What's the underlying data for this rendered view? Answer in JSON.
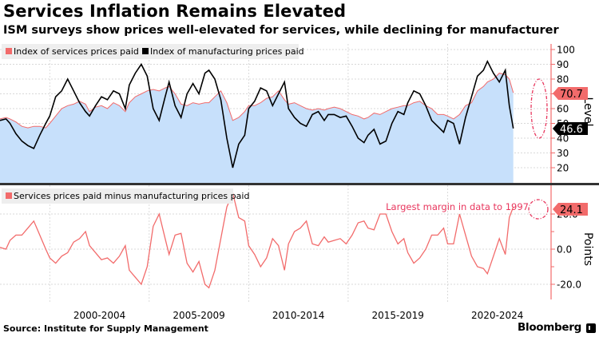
{
  "header": {
    "title": "Services Inflation Remains Elevated",
    "subtitle": "ISM surveys show prices well-elevated for services, while declining for manufacturer"
  },
  "footer": {
    "source": "Source: Institute for Supply Management",
    "brand": "Bloomberg"
  },
  "colors": {
    "services": "#f26b6b",
    "manufacturing": "#000000",
    "services_fill": "#c7e0fb",
    "annotation": "#e8365d",
    "axis": "#f26b6b"
  },
  "chart_data": [
    {
      "type": "area",
      "panel": "top",
      "title": "",
      "ylabel": "Level",
      "ylim": [
        10,
        102
      ],
      "yticks": [
        20,
        30,
        40,
        50,
        60,
        70,
        80,
        90,
        100
      ],
      "xlim": [
        1997.5,
        2025.2
      ],
      "xtick_labels": [
        "2000-2004",
        "2005-2009",
        "2010-2014",
        "2015-2019",
        "2020-2024"
      ],
      "x_gridlines": [
        2000,
        2005,
        2010,
        2015,
        2020
      ],
      "grid": true,
      "legend": [
        {
          "name": "Index of services prices paid",
          "color": "#f26b6b"
        },
        {
          "name": "Index of manufacturing prices paid",
          "color": "#000000"
        }
      ],
      "legend_position": "top-left",
      "last_value_labels": [
        {
          "series": "Index of services prices paid",
          "value": "70.7"
        },
        {
          "series": "Index of manufacturing prices paid",
          "value": "46.6"
        }
      ],
      "series": [
        {
          "name": "Index of services prices paid",
          "x": [
            1997.5,
            1997.8,
            1998.0,
            1998.3,
            1998.6,
            1998.9,
            1999.2,
            1999.5,
            1999.8,
            2000.0,
            2000.3,
            2000.6,
            2000.9,
            2001.2,
            2001.5,
            2001.8,
            2002.0,
            2002.3,
            2002.6,
            2002.9,
            2003.2,
            2003.5,
            2003.8,
            2004.0,
            2004.3,
            2004.6,
            2004.9,
            2005.2,
            2005.5,
            2005.8,
            2006.0,
            2006.3,
            2006.6,
            2006.9,
            2007.2,
            2007.5,
            2007.8,
            2008.0,
            2008.3,
            2008.6,
            2008.9,
            2009.2,
            2009.5,
            2009.8,
            2010.0,
            2010.3,
            2010.6,
            2010.9,
            2011.2,
            2011.5,
            2011.8,
            2012.0,
            2012.3,
            2012.6,
            2012.9,
            2013.2,
            2013.5,
            2013.8,
            2014.0,
            2014.3,
            2014.6,
            2014.9,
            2015.2,
            2015.5,
            2015.8,
            2016.0,
            2016.3,
            2016.6,
            2016.9,
            2017.2,
            2017.5,
            2017.8,
            2018.0,
            2018.3,
            2018.6,
            2018.9,
            2019.2,
            2019.5,
            2019.8,
            2020.0,
            2020.3,
            2020.6,
            2020.9,
            2021.2,
            2021.5,
            2021.8,
            2022.0,
            2022.3,
            2022.6,
            2022.9,
            2023.1,
            2023.3
          ],
          "values": [
            53,
            54,
            53,
            51,
            48,
            47,
            48,
            48,
            47,
            50,
            55,
            60,
            62,
            63,
            65,
            63,
            58,
            61,
            62,
            60,
            64,
            62,
            58,
            64,
            68,
            70,
            72,
            73,
            72,
            74,
            75,
            70,
            63,
            62,
            64,
            63,
            64,
            64,
            68,
            72,
            64,
            52,
            54,
            58,
            62,
            62,
            64,
            67,
            68,
            72,
            66,
            63,
            64,
            62,
            60,
            59,
            60,
            59,
            60,
            61,
            60,
            58,
            56,
            55,
            53,
            54,
            57,
            56,
            58,
            60,
            61,
            62,
            62,
            64,
            65,
            62,
            60,
            56,
            56,
            55,
            53,
            56,
            62,
            64,
            72,
            75,
            78,
            80,
            84,
            83,
            80,
            70.7
          ]
        },
        {
          "name": "Index of manufacturing prices paid",
          "x": [
            1997.5,
            1997.8,
            1998.0,
            1998.3,
            1998.6,
            1998.9,
            1999.2,
            1999.5,
            1999.8,
            2000.0,
            2000.3,
            2000.6,
            2000.9,
            2001.2,
            2001.5,
            2001.8,
            2002.0,
            2002.3,
            2002.6,
            2002.9,
            2003.2,
            2003.5,
            2003.8,
            2004.0,
            2004.3,
            2004.6,
            2004.9,
            2005.2,
            2005.5,
            2005.8,
            2006.0,
            2006.3,
            2006.6,
            2006.9,
            2007.2,
            2007.5,
            2007.8,
            2008.0,
            2008.3,
            2008.6,
            2008.9,
            2009.2,
            2009.5,
            2009.8,
            2010.0,
            2010.3,
            2010.6,
            2010.9,
            2011.2,
            2011.5,
            2011.8,
            2012.0,
            2012.3,
            2012.6,
            2012.9,
            2013.2,
            2013.5,
            2013.8,
            2014.0,
            2014.3,
            2014.6,
            2014.9,
            2015.2,
            2015.5,
            2015.8,
            2016.0,
            2016.3,
            2016.6,
            2016.9,
            2017.2,
            2017.5,
            2017.8,
            2018.0,
            2018.3,
            2018.6,
            2018.9,
            2019.2,
            2019.5,
            2019.8,
            2020.0,
            2020.3,
            2020.6,
            2020.9,
            2021.2,
            2021.5,
            2021.8,
            2022.0,
            2022.3,
            2022.6,
            2022.9,
            2023.1,
            2023.3
          ],
          "values": [
            52,
            53,
            50,
            43,
            38,
            35,
            33,
            42,
            50,
            55,
            68,
            72,
            80,
            72,
            64,
            58,
            55,
            62,
            68,
            66,
            72,
            70,
            60,
            76,
            84,
            90,
            82,
            60,
            52,
            68,
            78,
            62,
            54,
            70,
            77,
            70,
            84,
            86,
            80,
            66,
            40,
            20,
            36,
            42,
            60,
            65,
            74,
            72,
            62,
            70,
            78,
            60,
            54,
            50,
            48,
            56,
            58,
            52,
            56,
            56,
            54,
            55,
            48,
            40,
            37,
            42,
            46,
            36,
            38,
            50,
            58,
            56,
            64,
            72,
            70,
            62,
            52,
            48,
            44,
            52,
            50,
            36,
            54,
            68,
            82,
            86,
            92,
            84,
            78,
            86,
            62,
            46.6
          ]
        }
      ]
    },
    {
      "type": "line",
      "panel": "bottom",
      "title": "",
      "ylabel": "Points",
      "ylim": [
        -24,
        30
      ],
      "yticks": [
        -20.0,
        0.0,
        20.0
      ],
      "xlim": [
        1997.5,
        2025.2
      ],
      "grid": true,
      "legend": [
        {
          "name": "Services prices paid minus manufacturing prices paid",
          "color": "#f26b6b"
        }
      ],
      "legend_position": "top-left",
      "annotation": "Largest margin in data to 1997",
      "last_value_labels": [
        {
          "series": "Services prices paid minus manufacturing prices paid",
          "value": "24.1"
        }
      ],
      "series": [
        {
          "name": "Services prices paid minus manufacturing prices paid",
          "x": [
            1997.5,
            1997.8,
            1998.0,
            1998.3,
            1998.6,
            1998.9,
            1999.2,
            1999.5,
            1999.8,
            2000.0,
            2000.3,
            2000.6,
            2000.9,
            2001.2,
            2001.5,
            2001.8,
            2002.0,
            2002.3,
            2002.6,
            2002.9,
            2003.2,
            2003.5,
            2003.8,
            2004.0,
            2004.3,
            2004.6,
            2004.9,
            2005.2,
            2005.5,
            2005.8,
            2006.0,
            2006.3,
            2006.6,
            2006.9,
            2007.2,
            2007.5,
            2007.8,
            2008.0,
            2008.3,
            2008.6,
            2008.9,
            2009.2,
            2009.5,
            2009.8,
            2010.0,
            2010.3,
            2010.6,
            2010.9,
            2011.2,
            2011.5,
            2011.8,
            2012.0,
            2012.3,
            2012.6,
            2012.9,
            2013.2,
            2013.5,
            2013.8,
            2014.0,
            2014.3,
            2014.6,
            2014.9,
            2015.2,
            2015.5,
            2015.8,
            2016.0,
            2016.3,
            2016.6,
            2016.9,
            2017.2,
            2017.5,
            2017.8,
            2018.0,
            2018.3,
            2018.6,
            2018.9,
            2019.2,
            2019.5,
            2019.8,
            2020.0,
            2020.3,
            2020.6,
            2020.9,
            2021.2,
            2021.5,
            2021.8,
            2022.0,
            2022.3,
            2022.6,
            2022.9,
            2023.1,
            2023.3
          ],
          "values": [
            1,
            0,
            5,
            8,
            8,
            12,
            16,
            8,
            0,
            -5,
            -8,
            -4,
            -2,
            4,
            6,
            10,
            2,
            -2,
            -6,
            -5,
            -8,
            -4,
            2,
            -12,
            -16,
            -20,
            -10,
            13,
            20,
            6,
            -3,
            8,
            9,
            -8,
            -13,
            -7,
            -20,
            -22,
            -12,
            6,
            24,
            32,
            18,
            16,
            2,
            -3,
            -10,
            -5,
            6,
            2,
            -12,
            3,
            10,
            12,
            16,
            3,
            2,
            7,
            4,
            5,
            6,
            3,
            8,
            15,
            16,
            12,
            11,
            20,
            20,
            10,
            3,
            6,
            -2,
            -8,
            -5,
            0,
            8,
            8,
            12,
            3,
            3,
            20,
            8,
            -4,
            -10,
            -11,
            -14,
            -4,
            6,
            -3,
            18,
            24.1
          ]
        }
      ]
    }
  ]
}
